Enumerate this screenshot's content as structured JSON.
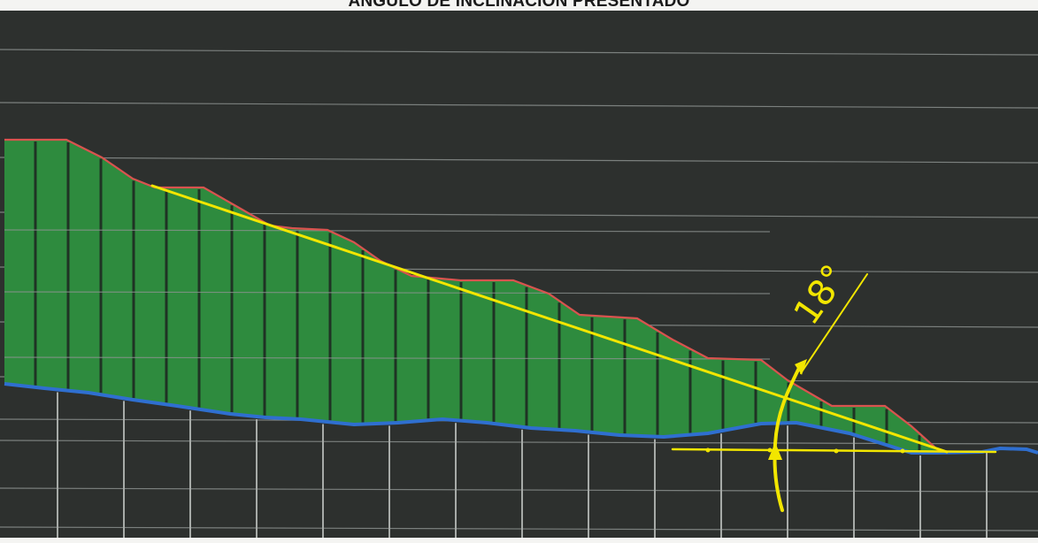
{
  "title": "ANGULO DE INCLINACION PRESENTADO",
  "annotation": {
    "angle_label": "18°"
  },
  "colors": {
    "background": "#2d302e",
    "fill": "#2e8b3e",
    "terrain_line": "#d9534f",
    "base_line": "#2f6fd0",
    "grid": "#8a8f8c",
    "annotation": "#f2e600",
    "page": "#f4f4f2"
  }
}
